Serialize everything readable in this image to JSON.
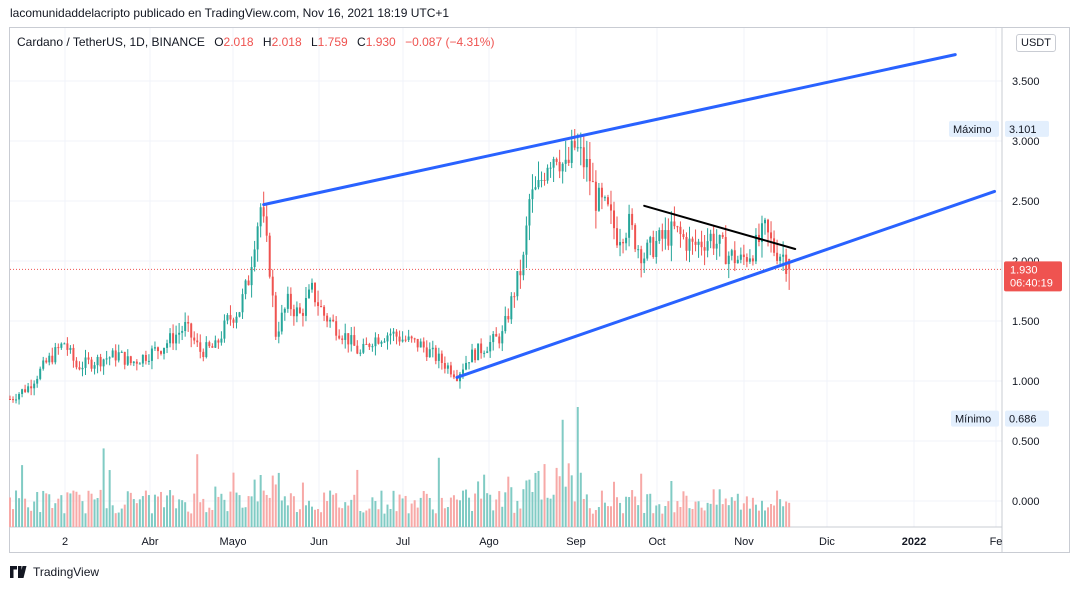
{
  "header": {
    "published_text": "lacomunidaddelacripto publicado en TradingView.com, Nov 16, 2021 18:19 UTC+1"
  },
  "legend": {
    "symbol": "Cardano / TetherUS, 1D, BINANCE",
    "o_label": "O",
    "o_value": "2.018",
    "h_label": "H",
    "h_value": "2.018",
    "l_label": "L",
    "l_value": "1.759",
    "c_label": "C",
    "c_value": "1.930",
    "change": "−0.087 (−4.31%)"
  },
  "price_scale": {
    "unit_button": "USDT"
  },
  "markers": {
    "max_label": "Máximo",
    "max_value": "3.101",
    "min_label": "Mínimo",
    "min_value": "0.686",
    "last_price": "1.930",
    "countdown": "06:40:19"
  },
  "brand": {
    "name": "TradingView"
  },
  "colors": {
    "up": "#26a69a",
    "down": "#ef5350",
    "trendline": "#2962ff",
    "resistance": "#000000",
    "vol_up": "#80cbc4",
    "vol_down": "#f7a9a7"
  },
  "chart_data": {
    "type": "candlestick",
    "symbol": "ADA/USDT",
    "interval": "1D",
    "y_ticks": [
      "3.500",
      "3.000",
      "2.500",
      "2.000",
      "1.500",
      "1.000",
      "0.500",
      "0.000"
    ],
    "ylim": [
      -0.22,
      3.85
    ],
    "x_tick_labels": [
      "2",
      "Abr",
      "Mayo",
      "Jun",
      "Jul",
      "Ago",
      "Sep",
      "Oct",
      "Nov",
      "Dic",
      "2022",
      "Fe"
    ],
    "price_path": [
      [
        0,
        0.85
      ],
      [
        6,
        0.95
      ],
      [
        12,
        1.15
      ],
      [
        18,
        1.32
      ],
      [
        22,
        1.12
      ],
      [
        30,
        1.18
      ],
      [
        36,
        1.22
      ],
      [
        40,
        1.15
      ],
      [
        50,
        1.28
      ],
      [
        58,
        1.45
      ],
      [
        63,
        1.25
      ],
      [
        68,
        1.28
      ],
      [
        72,
        1.5
      ],
      [
        76,
        1.6
      ],
      [
        79,
        1.85
      ],
      [
        81,
        2.2
      ],
      [
        83,
        2.45
      ],
      [
        86,
        1.95
      ],
      [
        88,
        1.4
      ],
      [
        92,
        1.65
      ],
      [
        96,
        1.55
      ],
      [
        100,
        1.75
      ],
      [
        104,
        1.55
      ],
      [
        108,
        1.45
      ],
      [
        112,
        1.35
      ],
      [
        116,
        1.22
      ],
      [
        120,
        1.35
      ],
      [
        126,
        1.4
      ],
      [
        130,
        1.35
      ],
      [
        136,
        1.3
      ],
      [
        141,
        1.2
      ],
      [
        146,
        1.1
      ],
      [
        148,
        1.05
      ],
      [
        152,
        1.2
      ],
      [
        158,
        1.3
      ],
      [
        163,
        1.38
      ],
      [
        167,
        1.75
      ],
      [
        170,
        2.0
      ],
      [
        172,
        2.5
      ],
      [
        175,
        2.6
      ],
      [
        178,
        2.85
      ],
      [
        181,
        2.92
      ],
      [
        184,
        2.75
      ],
      [
        187,
        2.95
      ],
      [
        191,
        2.78
      ],
      [
        194,
        2.52
      ],
      [
        198,
        2.4
      ],
      [
        201,
        2.22
      ],
      [
        205,
        2.3
      ],
      [
        208,
        2.12
      ],
      [
        210,
        2.05
      ],
      [
        214,
        2.15
      ],
      [
        220,
        2.25
      ],
      [
        226,
        2.12
      ],
      [
        232,
        2.2
      ],
      [
        238,
        2.05
      ],
      [
        242,
        2.0
      ],
      [
        247,
        2.12
      ],
      [
        250,
        2.25
      ],
      [
        253,
        2.1
      ],
      [
        256,
        2.05
      ],
      [
        258,
        1.93
      ]
    ],
    "trendlines": [
      {
        "name": "upper channel",
        "from": {
          "day": 84,
          "price": 2.47
        },
        "to": {
          "day": 313,
          "price": 3.72
        }
      },
      {
        "name": "lower channel",
        "from": {
          "day": 148,
          "price": 1.03
        },
        "to": {
          "day": 326,
          "price": 2.58
        }
      },
      {
        "name": "descending resistance",
        "from": {
          "day": 210,
          "price": 2.46
        },
        "to": {
          "day": 260,
          "price": 2.1
        }
      }
    ],
    "max_marker": 3.101,
    "min_marker": 0.686,
    "last_price": 1.93
  }
}
